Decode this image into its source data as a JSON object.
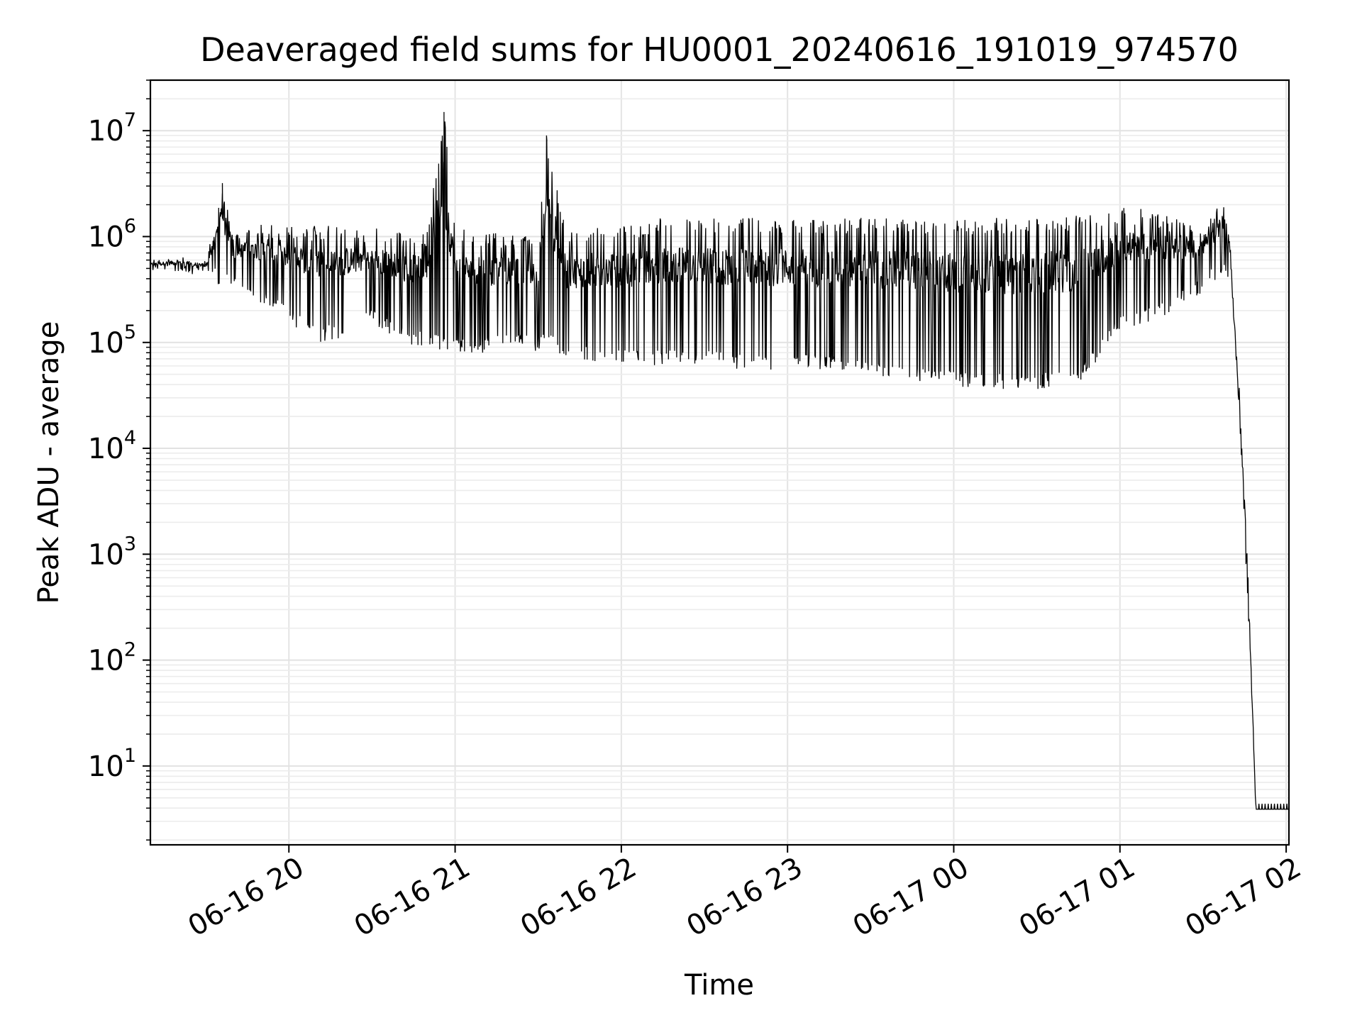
{
  "chart_data": {
    "type": "line",
    "title": "Deaveraged field sums for HU0001_20240616_191019_974570",
    "xlabel": "Time",
    "ylabel": "Peak ADU - average",
    "yscale": "log",
    "xlim": [
      "06-16 19:10",
      "06-17 02:01"
    ],
    "ylim": [
      1.8,
      30000000
    ],
    "grid": "both-major-and-minor",
    "line_color": "#000000",
    "x_ticks": [
      "06-16 20",
      "06-16 21",
      "06-16 22",
      "06-16 23",
      "06-17 00",
      "06-17 01",
      "06-17 02"
    ],
    "y_ticks": [
      {
        "base": "10",
        "exp": "1",
        "value": 10
      },
      {
        "base": "10",
        "exp": "2",
        "value": 100
      },
      {
        "base": "10",
        "exp": "3",
        "value": 1000
      },
      {
        "base": "10",
        "exp": "4",
        "value": 10000
      },
      {
        "base": "10",
        "exp": "5",
        "value": 100000
      },
      {
        "base": "10",
        "exp": "6",
        "value": 1000000
      },
      {
        "base": "10",
        "exp": "7",
        "value": 10000000
      }
    ],
    "series": [
      {
        "x": [
          "06-16 19:10",
          "06-16 19:20",
          "06-16 19:30",
          "06-16 19:36",
          "06-16 19:40",
          "06-16 19:45",
          "06-16 19:50",
          "06-16 20:00",
          "06-16 20:10",
          "06-16 20:20",
          "06-16 20:30",
          "06-16 20:40",
          "06-16 20:50",
          "06-16 20:56",
          "06-16 21:00",
          "06-16 21:10",
          "06-16 21:20",
          "06-16 21:30",
          "06-16 21:33",
          "06-16 21:40",
          "06-16 21:50",
          "06-16 22:00",
          "06-16 22:15",
          "06-16 22:30",
          "06-16 22:45",
          "06-16 23:00",
          "06-16 23:15",
          "06-16 23:30",
          "06-16 23:45",
          "06-17 00:00",
          "06-17 00:15",
          "06-17 00:30",
          "06-17 00:45",
          "06-17 01:00",
          "06-17 01:10",
          "06-17 01:20",
          "06-17 01:30",
          "06-17 01:37",
          "06-17 01:40",
          "06-17 01:44",
          "06-17 01:47",
          "06-17 01:49",
          "06-17 01:52",
          "06-17 02:01"
        ],
        "low": [
          450000,
          430000,
          410000,
          330000,
          350000,
          300000,
          230000,
          150000,
          100000,
          110000,
          150000,
          100000,
          90000,
          80000,
          80000,
          80000,
          90000,
          80000,
          90000,
          70000,
          65000,
          60000,
          60000,
          60000,
          55000,
          55000,
          55000,
          48000,
          42000,
          38000,
          36000,
          36000,
          40000,
          130000,
          150000,
          200000,
          300000,
          450000,
          350000,
          1000,
          20,
          3.9,
          3.9,
          3.9
        ],
        "high": [
          600000,
          650000,
          600000,
          3200000,
          1000000,
          1200000,
          1300000,
          1250000,
          1300000,
          1300000,
          1250000,
          1100000,
          1150000,
          15000000,
          1200000,
          1100000,
          1050000,
          1000000,
          9000000,
          1100000,
          1300000,
          1300000,
          1500000,
          1500000,
          1500000,
          1500000,
          1500000,
          1500000,
          1500000,
          1500000,
          1500000,
          1500000,
          1600000,
          1900000,
          1800000,
          1500000,
          1200000,
          2200000,
          900000,
          100000,
          1000,
          4.4,
          4.4,
          4.4
        ]
      }
    ]
  }
}
